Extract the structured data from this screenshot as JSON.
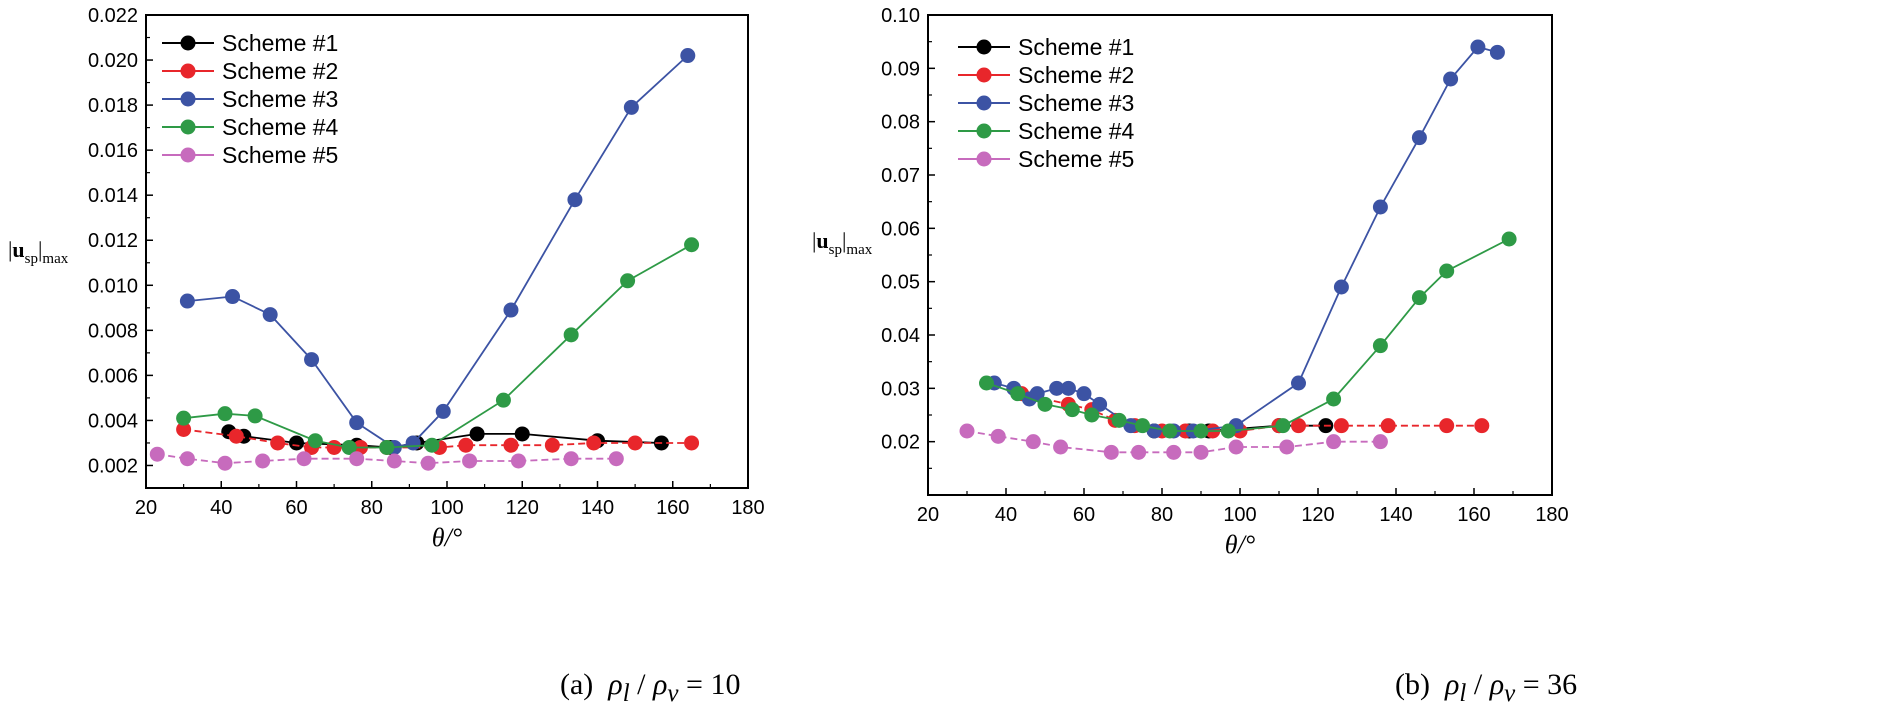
{
  "chart_data": [
    {
      "type": "line",
      "panel": "a",
      "caption_prefix": "(a)",
      "caption_ratio_value": "10",
      "xlabel": "θ/°",
      "ylabel_main": "u",
      "ylabel_sub": "sp",
      "ylabel_suffix": "max",
      "xlim": [
        20,
        180
      ],
      "ylim": [
        0.001,
        0.022
      ],
      "xticks": [
        20,
        40,
        60,
        80,
        100,
        120,
        140,
        160,
        180
      ],
      "yticks": [
        0.002,
        0.004,
        0.006,
        0.008,
        0.01,
        0.012,
        0.014,
        0.016,
        0.018,
        0.02,
        0.022
      ],
      "ytick_decimals": 3,
      "legend_position": "top-left",
      "series": [
        {
          "name": "Scheme #1",
          "color": "#000000",
          "dashed": false,
          "points": [
            [
              42,
              0.0035
            ],
            [
              46,
              0.0033
            ],
            [
              60,
              0.003
            ],
            [
              76,
              0.0029
            ],
            [
              85,
              0.0028
            ],
            [
              92,
              0.003
            ],
            [
              108,
              0.0034
            ],
            [
              120,
              0.0034
            ],
            [
              140,
              0.0031
            ],
            [
              157,
              0.003
            ]
          ]
        },
        {
          "name": "Scheme #2",
          "color": "#e8262b",
          "dashed": true,
          "points": [
            [
              30,
              0.0036
            ],
            [
              44,
              0.0033
            ],
            [
              55,
              0.003
            ],
            [
              64,
              0.0028
            ],
            [
              70,
              0.0028
            ],
            [
              77,
              0.0028
            ],
            [
              84,
              0.0028
            ],
            [
              98,
              0.0028
            ],
            [
              105,
              0.0029
            ],
            [
              117,
              0.0029
            ],
            [
              128,
              0.0029
            ],
            [
              139,
              0.003
            ],
            [
              150,
              0.003
            ],
            [
              165,
              0.003
            ]
          ]
        },
        {
          "name": "Scheme #3",
          "color": "#3c53a4",
          "dashed": false,
          "points": [
            [
              31,
              0.0093
            ],
            [
              43,
              0.0095
            ],
            [
              53,
              0.0087
            ],
            [
              64,
              0.0067
            ],
            [
              76,
              0.0039
            ],
            [
              86,
              0.0028
            ],
            [
              91,
              0.003
            ],
            [
              99,
              0.0044
            ],
            [
              117,
              0.0089
            ],
            [
              134,
              0.0138
            ],
            [
              149,
              0.0179
            ],
            [
              164,
              0.0202
            ]
          ]
        },
        {
          "name": "Scheme #4",
          "color": "#2e9a46",
          "dashed": false,
          "points": [
            [
              30,
              0.0041
            ],
            [
              41,
              0.0043
            ],
            [
              49,
              0.0042
            ],
            [
              65,
              0.0031
            ],
            [
              74,
              0.0028
            ],
            [
              84,
              0.0028
            ],
            [
              96,
              0.0029
            ],
            [
              115,
              0.0049
            ],
            [
              133,
              0.0078
            ],
            [
              148,
              0.0102
            ],
            [
              165,
              0.0118
            ]
          ]
        },
        {
          "name": "Scheme #5",
          "color": "#c76bbd",
          "dashed": true,
          "points": [
            [
              23,
              0.0025
            ],
            [
              31,
              0.0023
            ],
            [
              41,
              0.0021
            ],
            [
              51,
              0.0022
            ],
            [
              62,
              0.0023
            ],
            [
              76,
              0.0023
            ],
            [
              86,
              0.0022
            ],
            [
              95,
              0.0021
            ],
            [
              106,
              0.0022
            ],
            [
              119,
              0.0022
            ],
            [
              133,
              0.0023
            ],
            [
              145,
              0.0023
            ]
          ]
        }
      ]
    },
    {
      "type": "line",
      "panel": "b",
      "caption_prefix": "(b)",
      "caption_ratio_value": "36",
      "xlabel": "θ/°",
      "ylabel_main": "u",
      "ylabel_sub": "sp",
      "ylabel_suffix": "max",
      "xlim": [
        20,
        180
      ],
      "ylim": [
        0.01,
        0.1
      ],
      "xticks": [
        20,
        40,
        60,
        80,
        100,
        120,
        140,
        160,
        180
      ],
      "yticks": [
        0.02,
        0.03,
        0.04,
        0.05,
        0.06,
        0.07,
        0.08,
        0.09,
        0.1
      ],
      "ytick_decimals": 2,
      "legend_position": "top-left",
      "series": [
        {
          "name": "Scheme #1",
          "color": "#000000",
          "dashed": false,
          "points": [
            [
              78,
              0.022
            ],
            [
              87,
              0.022
            ],
            [
              92,
              0.022
            ],
            [
              110,
              0.023
            ],
            [
              122,
              0.023
            ]
          ]
        },
        {
          "name": "Scheme #2",
          "color": "#e8262b",
          "dashed": true,
          "points": [
            [
              44,
              0.029
            ],
            [
              56,
              0.027
            ],
            [
              62,
              0.026
            ],
            [
              68,
              0.024
            ],
            [
              73,
              0.023
            ],
            [
              80,
              0.022
            ],
            [
              86,
              0.022
            ],
            [
              93,
              0.022
            ],
            [
              100,
              0.022
            ],
            [
              110,
              0.023
            ],
            [
              115,
              0.023
            ],
            [
              126,
              0.023
            ],
            [
              138,
              0.023
            ],
            [
              153,
              0.023
            ],
            [
              162,
              0.023
            ]
          ]
        },
        {
          "name": "Scheme #3",
          "color": "#3c53a4",
          "dashed": false,
          "points": [
            [
              37,
              0.031
            ],
            [
              42,
              0.03
            ],
            [
              46,
              0.028
            ],
            [
              48,
              0.029
            ],
            [
              53,
              0.03
            ],
            [
              56,
              0.03
            ],
            [
              60,
              0.029
            ],
            [
              64,
              0.027
            ],
            [
              72,
              0.023
            ],
            [
              78,
              0.022
            ],
            [
              83,
              0.022
            ],
            [
              88,
              0.022
            ],
            [
              99,
              0.023
            ],
            [
              115,
              0.031
            ],
            [
              126,
              0.049
            ],
            [
              136,
              0.064
            ],
            [
              146,
              0.077
            ],
            [
              154,
              0.088
            ],
            [
              161,
              0.094
            ],
            [
              166,
              0.093
            ]
          ]
        },
        {
          "name": "Scheme #4",
          "color": "#2e9a46",
          "dashed": false,
          "points": [
            [
              35,
              0.031
            ],
            [
              43,
              0.029
            ],
            [
              50,
              0.027
            ],
            [
              57,
              0.026
            ],
            [
              62,
              0.025
            ],
            [
              69,
              0.024
            ],
            [
              75,
              0.023
            ],
            [
              82,
              0.022
            ],
            [
              90,
              0.022
            ],
            [
              97,
              0.022
            ],
            [
              111,
              0.023
            ],
            [
              124,
              0.028
            ],
            [
              136,
              0.038
            ],
            [
              146,
              0.047
            ],
            [
              153,
              0.052
            ],
            [
              169,
              0.058
            ]
          ]
        },
        {
          "name": "Scheme #5",
          "color": "#c76bbd",
          "dashed": true,
          "points": [
            [
              30,
              0.022
            ],
            [
              38,
              0.021
            ],
            [
              47,
              0.02
            ],
            [
              54,
              0.019
            ],
            [
              67,
              0.018
            ],
            [
              74,
              0.018
            ],
            [
              83,
              0.018
            ],
            [
              90,
              0.018
            ],
            [
              99,
              0.019
            ],
            [
              112,
              0.019
            ],
            [
              124,
              0.02
            ],
            [
              136,
              0.02
            ]
          ]
        }
      ]
    }
  ]
}
